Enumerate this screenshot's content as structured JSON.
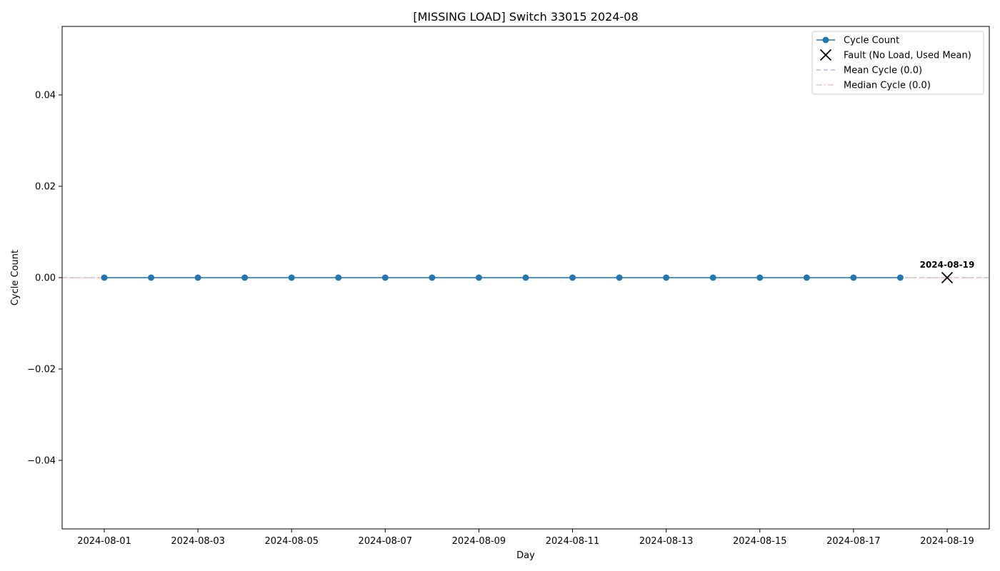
{
  "chart_data": {
    "type": "line",
    "title": "[MISSING LOAD] Switch 33015 2024-08",
    "xlabel": "Day",
    "ylabel": "Cycle Count",
    "xlim": [
      "2024-07-31T02:24",
      "2024-08-19T21:36"
    ],
    "ylim": [
      -0.055,
      0.055
    ],
    "x_ticks": [
      "2024-08-01",
      "2024-08-03",
      "2024-08-05",
      "2024-08-07",
      "2024-08-09",
      "2024-08-11",
      "2024-08-13",
      "2024-08-15",
      "2024-08-17",
      "2024-08-19"
    ],
    "y_ticks": [
      0.04,
      0.02,
      0.0,
      -0.02,
      -0.04
    ],
    "y_tick_labels": [
      "0.04",
      "0.02",
      "0.00",
      "−0.02",
      "−0.04"
    ],
    "grid": false,
    "legend_position": "top-right",
    "series": [
      {
        "name": "Cycle Count",
        "type": "line",
        "marker": "circle",
        "color": "#1f77b4",
        "x": [
          "2024-08-01",
          "2024-08-02",
          "2024-08-03",
          "2024-08-04",
          "2024-08-05",
          "2024-08-06",
          "2024-08-07",
          "2024-08-08",
          "2024-08-09",
          "2024-08-10",
          "2024-08-11",
          "2024-08-12",
          "2024-08-13",
          "2024-08-14",
          "2024-08-15",
          "2024-08-16",
          "2024-08-17",
          "2024-08-18"
        ],
        "y": [
          0,
          0,
          0,
          0,
          0,
          0,
          0,
          0,
          0,
          0,
          0,
          0,
          0,
          0,
          0,
          0,
          0,
          0
        ]
      },
      {
        "name": "Fault (No Load, Used Mean)",
        "type": "scatter",
        "marker": "x",
        "color": "#000000",
        "x": [
          "2024-08-19"
        ],
        "y": [
          0
        ]
      },
      {
        "name": "Mean Cycle (0.0)",
        "type": "hline",
        "style": "dashed",
        "color": "#b0a8f0",
        "y": 0.0
      },
      {
        "name": "Median Cycle (0.0)",
        "type": "hline",
        "style": "dashdot",
        "color": "#f2b8a8",
        "y": 0.0
      }
    ],
    "annotations": [
      {
        "text": "2024-08-19",
        "x": "2024-08-19",
        "y": 0
      }
    ]
  }
}
